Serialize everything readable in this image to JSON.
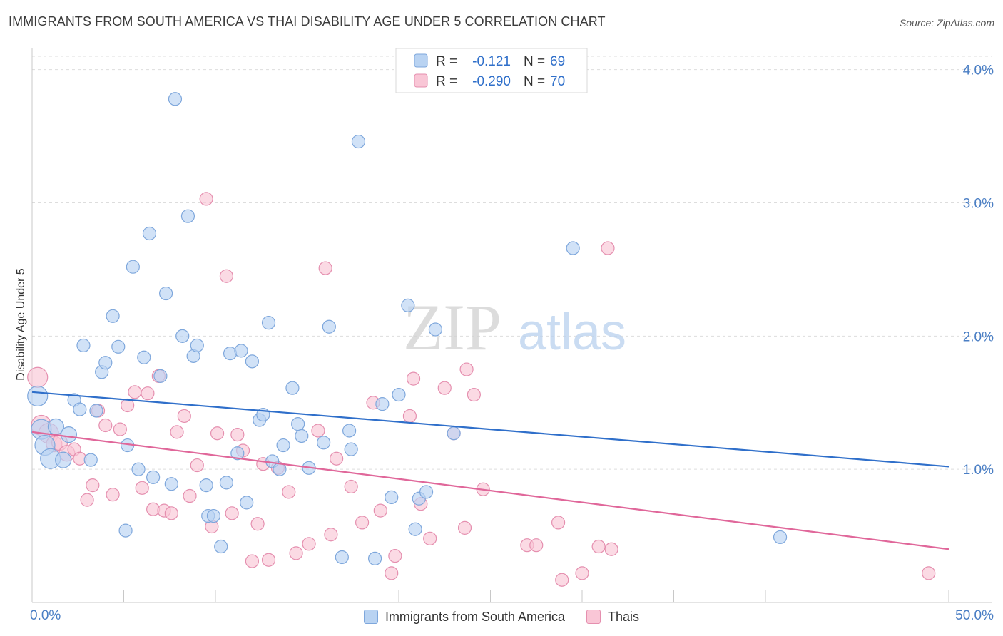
{
  "header": {
    "title": "IMMIGRANTS FROM SOUTH AMERICA VS THAI DISABILITY AGE UNDER 5 CORRELATION CHART",
    "source": "Source: ZipAtlas.com"
  },
  "watermark": {
    "zip": "ZIP",
    "atlas": "atlas"
  },
  "legend_top": [
    {
      "r_label": "R =",
      "r_value": "-0.121",
      "n_label": "N =",
      "n_value": "69"
    },
    {
      "r_label": "R =",
      "r_value": "-0.290",
      "n_label": "N =",
      "n_value": "70"
    }
  ],
  "colors": {
    "blue_fill": "#b9d3f2",
    "blue_stroke": "#7ea7dc",
    "blue_line": "#2f6fca",
    "pink_fill": "#f9c6d6",
    "pink_stroke": "#e58faf",
    "pink_line": "#e0679a",
    "tick_text": "#4a7ec4",
    "grid": "#dddddd"
  },
  "chart_data": {
    "type": "scatter",
    "title": "IMMIGRANTS FROM SOUTH AMERICA VS THAI DISABILITY AGE UNDER 5 CORRELATION CHART",
    "xlabel": "",
    "ylabel": "Disability Age Under 5",
    "xlim": [
      0,
      50
    ],
    "ylim": [
      0,
      4.1
    ],
    "x_tick_labels": [
      "0.0%",
      "50.0%"
    ],
    "y_ticks": [
      1,
      2,
      3,
      4
    ],
    "y_tick_labels": [
      "1.0%",
      "2.0%",
      "3.0%",
      "4.0%"
    ],
    "grid": "horizontal dashed",
    "legend_placement": "top-center and bottom",
    "series": [
      {
        "name": "Immigrants from South America",
        "color": "#b9d3f2",
        "trend": {
          "x": [
            0,
            50
          ],
          "y": [
            1.58,
            1.02
          ]
        },
        "points": [
          [
            0.3,
            1.55
          ],
          [
            0.5,
            1.3
          ],
          [
            0.7,
            1.18
          ],
          [
            1.0,
            1.08
          ],
          [
            1.7,
            1.07
          ],
          [
            1.3,
            1.32
          ],
          [
            2.0,
            1.26
          ],
          [
            2.3,
            1.52
          ],
          [
            2.6,
            1.45
          ],
          [
            2.8,
            1.93
          ],
          [
            3.2,
            1.07
          ],
          [
            3.5,
            1.44
          ],
          [
            3.8,
            1.73
          ],
          [
            4.0,
            1.8
          ],
          [
            4.4,
            2.15
          ],
          [
            4.7,
            1.92
          ],
          [
            5.1,
            0.54
          ],
          [
            5.2,
            1.18
          ],
          [
            5.5,
            2.52
          ],
          [
            5.8,
            1.0
          ],
          [
            6.1,
            1.84
          ],
          [
            6.4,
            2.77
          ],
          [
            6.6,
            0.94
          ],
          [
            7.0,
            1.7
          ],
          [
            7.3,
            2.32
          ],
          [
            7.6,
            0.89
          ],
          [
            7.8,
            3.78
          ],
          [
            8.2,
            2.0
          ],
          [
            8.5,
            2.9
          ],
          [
            8.8,
            1.85
          ],
          [
            9.0,
            1.93
          ],
          [
            9.5,
            0.88
          ],
          [
            9.6,
            0.65
          ],
          [
            9.9,
            0.65
          ],
          [
            10.3,
            0.42
          ],
          [
            10.6,
            0.9
          ],
          [
            10.8,
            1.87
          ],
          [
            11.2,
            1.12
          ],
          [
            11.4,
            1.89
          ],
          [
            11.7,
            0.75
          ],
          [
            12.0,
            1.81
          ],
          [
            12.4,
            1.37
          ],
          [
            12.6,
            1.41
          ],
          [
            12.9,
            2.1
          ],
          [
            13.1,
            1.06
          ],
          [
            13.5,
            1.0
          ],
          [
            13.7,
            1.18
          ],
          [
            14.2,
            1.61
          ],
          [
            14.5,
            1.34
          ],
          [
            14.7,
            1.25
          ],
          [
            15.1,
            1.01
          ],
          [
            15.9,
            1.2
          ],
          [
            16.2,
            2.07
          ],
          [
            16.9,
            0.34
          ],
          [
            17.3,
            1.29
          ],
          [
            17.4,
            1.15
          ],
          [
            17.8,
            3.46
          ],
          [
            18.7,
            0.33
          ],
          [
            19.1,
            1.49
          ],
          [
            19.6,
            0.79
          ],
          [
            20.0,
            1.56
          ],
          [
            20.5,
            2.23
          ],
          [
            20.9,
            0.55
          ],
          [
            21.1,
            0.78
          ],
          [
            21.5,
            0.83
          ],
          [
            22.0,
            2.05
          ],
          [
            23.0,
            1.27
          ],
          [
            29.5,
            2.66
          ],
          [
            40.8,
            0.49
          ]
        ]
      },
      {
        "name": "Thais",
        "color": "#f9c6d6",
        "trend": {
          "x": [
            0,
            50
          ],
          "y": [
            1.28,
            0.4
          ]
        },
        "points": [
          [
            0.3,
            1.69
          ],
          [
            0.5,
            1.33
          ],
          [
            0.9,
            1.27
          ],
          [
            1.2,
            1.19
          ],
          [
            1.5,
            1.2
          ],
          [
            1.9,
            1.12
          ],
          [
            2.3,
            1.15
          ],
          [
            2.6,
            1.08
          ],
          [
            3.0,
            0.77
          ],
          [
            3.3,
            0.88
          ],
          [
            3.6,
            1.44
          ],
          [
            4.0,
            1.33
          ],
          [
            4.4,
            0.81
          ],
          [
            4.8,
            1.3
          ],
          [
            5.2,
            1.48
          ],
          [
            5.6,
            1.58
          ],
          [
            6.0,
            0.86
          ],
          [
            6.3,
            1.57
          ],
          [
            6.6,
            0.7
          ],
          [
            6.9,
            1.7
          ],
          [
            7.2,
            0.69
          ],
          [
            7.6,
            0.67
          ],
          [
            7.9,
            1.28
          ],
          [
            8.3,
            1.4
          ],
          [
            8.6,
            0.8
          ],
          [
            9.0,
            1.03
          ],
          [
            9.5,
            3.03
          ],
          [
            9.8,
            0.57
          ],
          [
            10.1,
            1.27
          ],
          [
            10.6,
            2.45
          ],
          [
            10.9,
            0.67
          ],
          [
            11.2,
            1.26
          ],
          [
            11.5,
            1.14
          ],
          [
            12.0,
            0.31
          ],
          [
            12.3,
            0.59
          ],
          [
            12.6,
            1.04
          ],
          [
            12.9,
            0.32
          ],
          [
            13.4,
            1.01
          ],
          [
            14.0,
            0.83
          ],
          [
            14.4,
            0.37
          ],
          [
            15.1,
            0.44
          ],
          [
            15.6,
            1.29
          ],
          [
            16.0,
            2.51
          ],
          [
            16.3,
            0.51
          ],
          [
            16.6,
            1.08
          ],
          [
            17.4,
            0.87
          ],
          [
            18.0,
            0.6
          ],
          [
            18.6,
            1.5
          ],
          [
            19.0,
            0.69
          ],
          [
            19.6,
            0.22
          ],
          [
            19.8,
            0.35
          ],
          [
            20.6,
            1.4
          ],
          [
            20.8,
            1.68
          ],
          [
            21.2,
            0.74
          ],
          [
            21.7,
            0.48
          ],
          [
            22.5,
            1.61
          ],
          [
            23.0,
            1.27
          ],
          [
            23.6,
            0.56
          ],
          [
            23.7,
            1.75
          ],
          [
            24.1,
            1.56
          ],
          [
            24.6,
            0.85
          ],
          [
            27.0,
            0.43
          ],
          [
            27.5,
            0.43
          ],
          [
            28.7,
            0.6
          ],
          [
            28.9,
            0.17
          ],
          [
            30.0,
            0.22
          ],
          [
            30.9,
            0.42
          ],
          [
            31.4,
            2.66
          ],
          [
            31.6,
            0.4
          ],
          [
            48.9,
            0.22
          ]
        ]
      }
    ]
  }
}
